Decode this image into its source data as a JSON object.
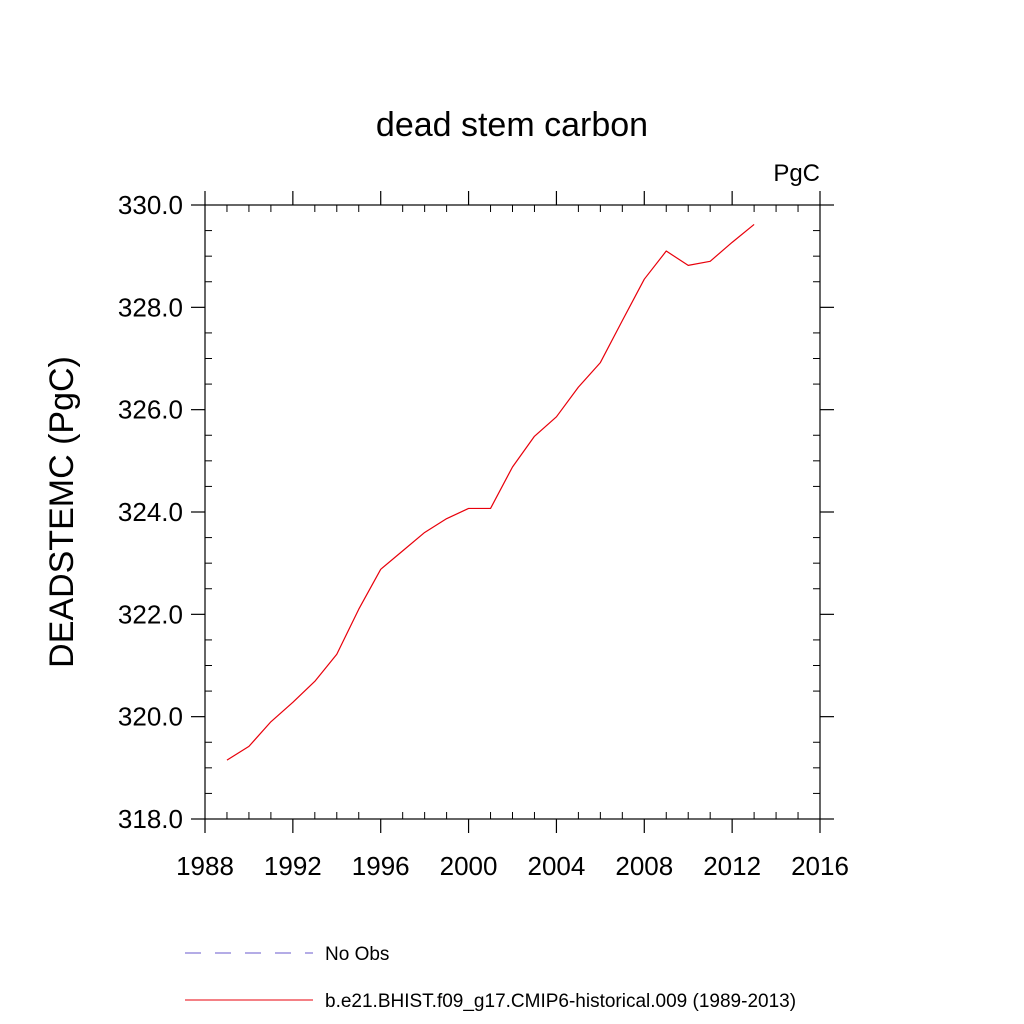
{
  "chart_data": {
    "type": "line",
    "title": "dead stem carbon",
    "units_label": "PgC",
    "ylabel": "DEADSTEMC  (PgC)",
    "xlabel": "",
    "xlim": [
      1988,
      2016
    ],
    "ylim": [
      318.0,
      330.0
    ],
    "x_ticks": [
      1988,
      1992,
      1996,
      2000,
      2004,
      2008,
      2012,
      2016
    ],
    "x_minor_step": 1,
    "y_ticks": [
      318.0,
      320.0,
      322.0,
      324.0,
      326.0,
      328.0,
      330.0
    ],
    "y_tick_labels": [
      "318.0",
      "320.0",
      "322.0",
      "324.0",
      "326.0",
      "328.0",
      "330.0"
    ],
    "y_minor_step": 0.5,
    "grid": false,
    "series": [
      {
        "name": "b.e21.BHIST.f09_g17.CMIP6-historical.009 (1989-2013)",
        "color": "#e8000b",
        "style": "solid",
        "x": [
          1989,
          1990,
          1991,
          1992,
          1993,
          1994,
          1995,
          1996,
          1997,
          1998,
          1999,
          2000,
          2001,
          2002,
          2003,
          2004,
          2005,
          2006,
          2007,
          2008,
          2009,
          2010,
          2011,
          2012,
          2013
        ],
        "values": [
          319.15,
          319.42,
          319.9,
          320.28,
          320.69,
          321.22,
          322.1,
          322.88,
          323.24,
          323.6,
          323.87,
          324.07,
          324.07,
          324.88,
          325.48,
          325.86,
          326.44,
          326.92,
          327.74,
          328.55,
          329.1,
          328.82,
          328.9,
          329.27,
          329.62
        ]
      }
    ],
    "legend": {
      "placement": "bottom",
      "entries": [
        {
          "label": "No Obs",
          "color": "#6a5acd",
          "style": "dashed"
        },
        {
          "label": "b.e21.BHIST.f09_g17.CMIP6-historical.009 (1989-2013)",
          "color": "#e8000b",
          "style": "solid"
        }
      ]
    }
  }
}
